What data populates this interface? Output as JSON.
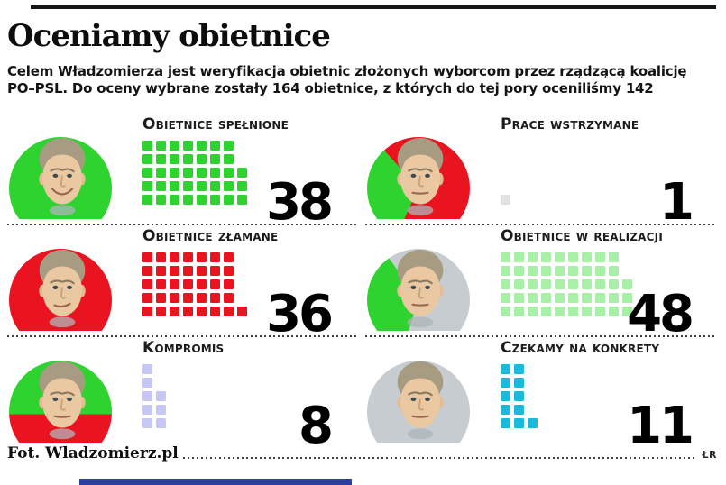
{
  "page": {
    "title": "Oceniamy obietnice",
    "intro": "Celem Władzomierza jest weryfikacja obietnic złożonych wyborcom przez rządzącą koalicję PO–PSL. Do oceny wybrane zostały 164 obietnice, z których do tej pory oceniliśmy 142",
    "footer": {
      "credit": "Fot. Wladzomierz.pl",
      "initials": "ŁR"
    },
    "bottom_bar_color": "#2c3ea2"
  },
  "chart_data": {
    "type": "bar",
    "variant": "waffle-pictogram",
    "title": "Oceniamy obietnice",
    "unit": "obietnice",
    "total_selected": 164,
    "total_evaluated": 142,
    "waffle_rows": 5,
    "legend_position": "none",
    "categories": [
      "Obietnice spełnione",
      "Prace wstrzymane",
      "Obietnice złamane",
      "Obietnice w realizacji",
      "Kompromis",
      "Czekamy na konkrety"
    ],
    "values": [
      38,
      1,
      36,
      48,
      8,
      11
    ],
    "items": [
      {
        "label": "Obietnice spełnione",
        "value": 38,
        "square_color": "#2fd32f",
        "portrait": "solid-green",
        "expression": "smiling"
      },
      {
        "label": "Prace wstrzymane",
        "value": 1,
        "square_color": "#e2e2e2",
        "portrait": "red-green-wedge",
        "expression": "stern"
      },
      {
        "label": "Obietnice złamane",
        "value": 36,
        "square_color": "#ea1420",
        "portrait": "solid-red",
        "expression": "wry"
      },
      {
        "label": "Obietnice w realizacji",
        "value": 48,
        "square_color": "#a8efa8",
        "portrait": "gray-green-wedge",
        "expression": "stern"
      },
      {
        "label": "Kompromis",
        "value": 8,
        "square_color": "#c6c7f5",
        "portrait": "green-red-half",
        "expression": "stern"
      },
      {
        "label": "Czekamy na konkrety",
        "value": 11,
        "square_color": "#1bb9da",
        "portrait": "solid-gray",
        "expression": "stern"
      }
    ],
    "colors": {
      "fulfilled_green": "#2fd32f",
      "broken_red": "#ea1420",
      "in_progress_light_green": "#a8efa8",
      "compromise_lavender": "#c6c7f5",
      "waiting_cyan": "#1bb9da",
      "halted_gray_square": "#e2e2e2",
      "portrait_gray": "#c6ccd0"
    }
  }
}
